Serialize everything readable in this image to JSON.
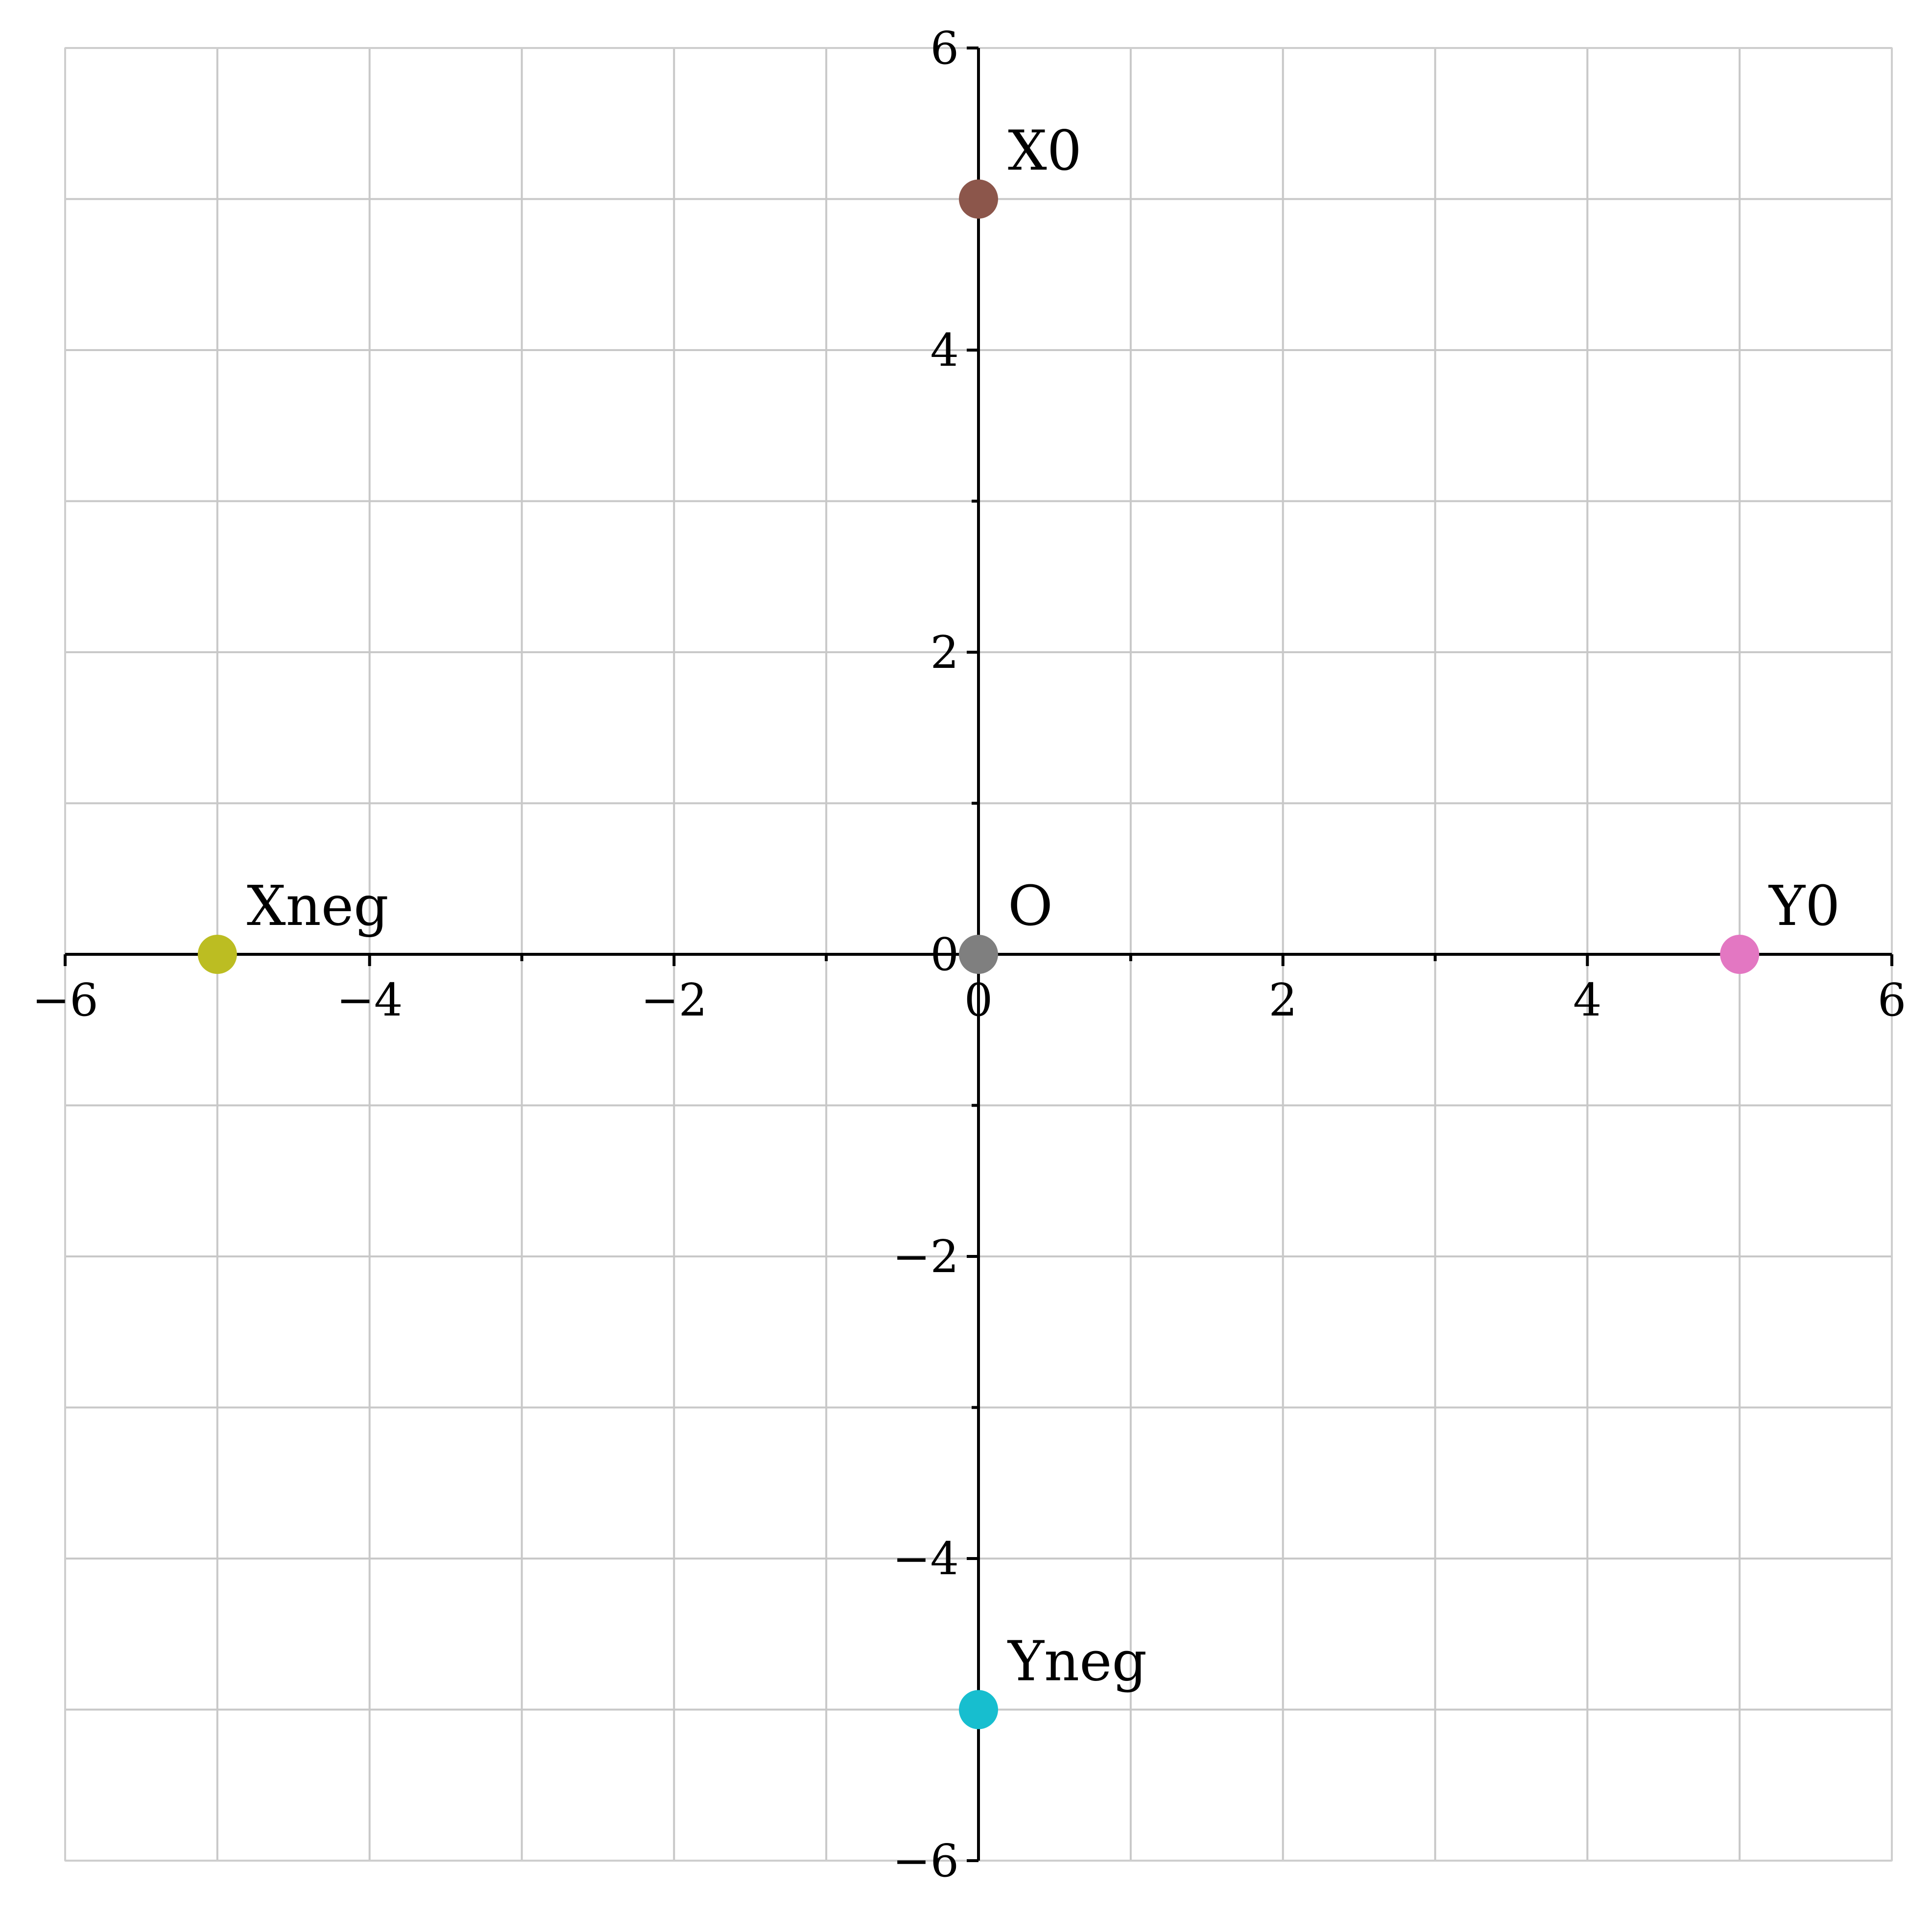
{
  "chart_data": {
    "type": "scatter",
    "title": "",
    "xlabel": "",
    "ylabel": "",
    "xlim": [
      -6,
      6
    ],
    "ylim": [
      -6,
      6
    ],
    "grid": true,
    "grid_step": 1,
    "x_ticks": [
      -6,
      -4,
      -2,
      0,
      2,
      4,
      6
    ],
    "y_ticks": [
      -6,
      -4,
      -2,
      0,
      2,
      4,
      6
    ],
    "x_tick_labels": [
      "−6",
      "−4",
      "−2",
      "0",
      "2",
      "4",
      "6"
    ],
    "y_tick_labels": [
      "−6",
      "−4",
      "−2",
      "0",
      "2",
      "4",
      "6"
    ],
    "minor_ticks": [
      -5,
      -3,
      -1,
      1,
      3,
      5
    ],
    "spines": "centered",
    "points": [
      {
        "label": "X0",
        "x": 0,
        "y": 5,
        "color": "#8c564b"
      },
      {
        "label": "Xneg",
        "x": -5,
        "y": 0,
        "color": "#bcbd22"
      },
      {
        "label": "O",
        "x": 0,
        "y": 0,
        "color": "#7f7f7f"
      },
      {
        "label": "Y0",
        "x": 5,
        "y": 0,
        "color": "#e377c2"
      },
      {
        "label": "Yneg",
        "x": 0,
        "y": -5,
        "color": "#17becf"
      }
    ]
  }
}
